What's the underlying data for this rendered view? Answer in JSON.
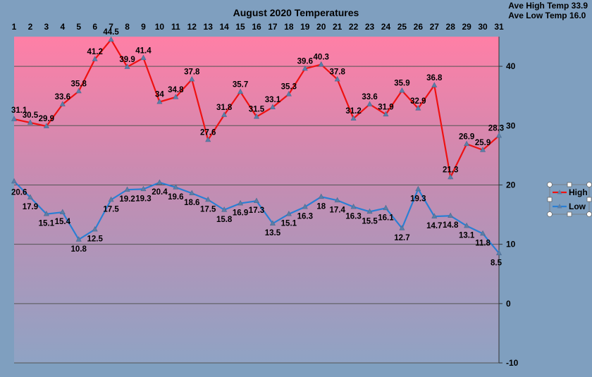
{
  "stats": {
    "ave_high": "Ave High Temp 33.9",
    "ave_low": "Ave Low Temp 16.0"
  },
  "chart_data": {
    "type": "line",
    "title": "August 2020 Temperatures",
    "x": [
      1,
      2,
      3,
      4,
      5,
      6,
      7,
      8,
      9,
      10,
      11,
      12,
      13,
      14,
      15,
      16,
      17,
      18,
      19,
      20,
      21,
      22,
      23,
      24,
      25,
      26,
      27,
      28,
      29,
      30,
      31
    ],
    "series": [
      {
        "name": "High",
        "color": "#ee1111",
        "values": [
          31.1,
          30.5,
          29.9,
          33.6,
          35.8,
          41.2,
          44.5,
          39.9,
          41.4,
          34,
          34.8,
          37.8,
          27.6,
          31.8,
          35.7,
          31.5,
          33.1,
          35.3,
          39.6,
          40.3,
          37.8,
          31.2,
          33.6,
          31.9,
          35.9,
          32.9,
          36.8,
          21.3,
          26.9,
          25.9,
          28.3
        ]
      },
      {
        "name": "Low",
        "color": "#2a7fd4",
        "values": [
          20.6,
          17.9,
          15.1,
          15.4,
          10.8,
          12.5,
          17.5,
          19.2,
          19.3,
          20.4,
          19.6,
          18.6,
          17.5,
          15.8,
          16.9,
          17.3,
          13.5,
          15.1,
          16.3,
          18,
          17.4,
          16.3,
          15.5,
          16.1,
          12.7,
          19.3,
          14.7,
          14.8,
          13.1,
          11.8,
          8.5
        ]
      }
    ],
    "ylim": [
      -10,
      45
    ],
    "yticks": [
      -10,
      0,
      10,
      20,
      30,
      40
    ],
    "grid": true,
    "legend": "right"
  }
}
